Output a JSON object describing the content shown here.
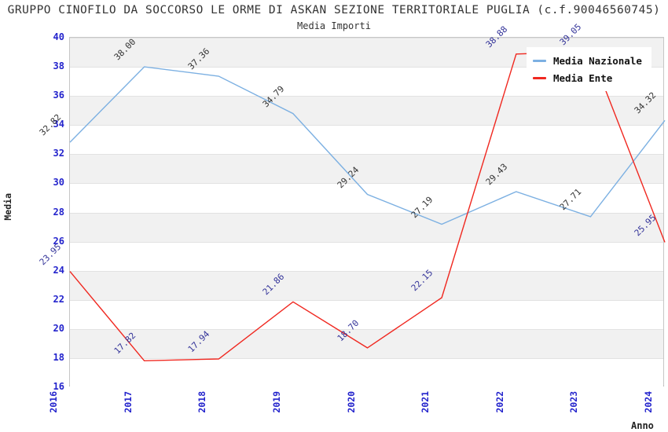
{
  "header": {
    "title": "GRUPPO CINOFILO DA SOCCORSO LE ORME DI ASKAN SEZIONE TERRITORIALE PUGLIA (c.f.90046560745)",
    "subtitle": "Media Importi"
  },
  "axes": {
    "y_label": "Media",
    "x_label": "Anno",
    "y_ticks": [
      40,
      38,
      36,
      34,
      32,
      30,
      28,
      26,
      24,
      22,
      20,
      18,
      16
    ]
  },
  "colors": {
    "tick_label": "#2323CC",
    "band_gray": "#F1F1F1",
    "band_white": "#FFFFFF",
    "grid_line": "#E2E2E2",
    "title_text": "#333333",
    "series_nazionale": "#7CB0E2",
    "series_ente": "#F02820"
  },
  "chart_data": {
    "type": "line",
    "title": "GRUPPO CINOFILO DA SOCCORSO LE ORME DI ASKAN SEZIONE TERRITORIALE PUGLIA (c.f.90046560745)",
    "subtitle": "Media Importi",
    "xlabel": "Anno",
    "ylabel": "Media",
    "categories": [
      "2016",
      "2017",
      "2018",
      "2019",
      "2020",
      "2021",
      "2022",
      "2023",
      "2024"
    ],
    "series": [
      {
        "name": "Media Nazionale",
        "color": "#7CB0E2",
        "label_color": "#333333",
        "values": [
          32.82,
          38.0,
          37.36,
          34.79,
          29.24,
          27.19,
          29.43,
          27.71,
          34.32
        ]
      },
      {
        "name": "Media Ente",
        "color": "#F02820",
        "label_color": "#333399",
        "values": [
          23.95,
          17.82,
          17.94,
          21.86,
          18.7,
          22.15,
          38.88,
          39.05,
          25.95
        ]
      }
    ],
    "ylim": [
      16,
      40
    ],
    "ytick_step": 2,
    "grid": true,
    "alternating_bands": true,
    "legend_position": "top-right",
    "data_labels": true,
    "data_label_format": "0.00"
  }
}
